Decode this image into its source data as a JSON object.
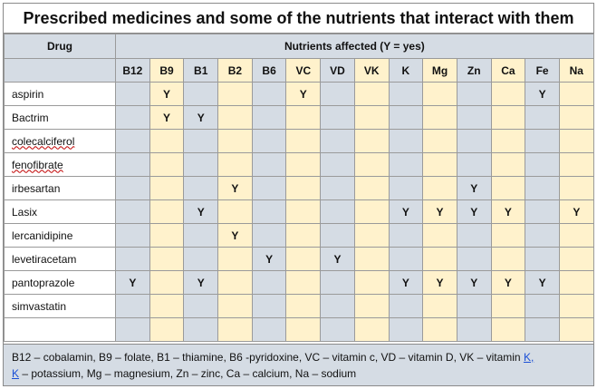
{
  "title": "Prescribed medicines and some of the nutrients that interact with them",
  "table": {
    "drug_header": "Drug",
    "nutrients_header": "Nutrients affected (Y = yes)",
    "nutrients": [
      "B12",
      "B9",
      "B1",
      "B2",
      "B6",
      "VC",
      "VD",
      "VK",
      "K",
      "Mg",
      "Zn",
      "Ca",
      "Fe",
      "Na"
    ],
    "rows": [
      {
        "drug": "aspirin",
        "cells": [
          "",
          "Y",
          "",
          "",
          "",
          "Y",
          "",
          "",
          "",
          "",
          "",
          "",
          "Y",
          ""
        ]
      },
      {
        "drug": "Bactrim",
        "cells": [
          "",
          "Y",
          "Y",
          "",
          "",
          "",
          "",
          "",
          "",
          "",
          "",
          "",
          "",
          ""
        ]
      },
      {
        "drug": "colecalciferol",
        "cells": [
          "",
          "",
          "",
          "",
          "",
          "",
          "",
          "",
          "",
          "",
          "",
          "",
          "",
          ""
        ]
      },
      {
        "drug": "fenofibrate",
        "cells": [
          "",
          "",
          "",
          "",
          "",
          "",
          "",
          "",
          "",
          "",
          "",
          "",
          "",
          ""
        ]
      },
      {
        "drug": "irbesartan",
        "cells": [
          "",
          "",
          "",
          "Y",
          "",
          "",
          "",
          "",
          "",
          "",
          "Y",
          "",
          "",
          ""
        ]
      },
      {
        "drug": "Lasix",
        "cells": [
          "",
          "",
          "Y",
          "",
          "",
          "",
          "",
          "",
          "Y",
          "Y",
          "Y",
          "Y",
          "",
          "Y"
        ]
      },
      {
        "drug": "lercanidipine",
        "cells": [
          "",
          "",
          "",
          "Y",
          "",
          "",
          "",
          "",
          "",
          "",
          "",
          "",
          "",
          ""
        ]
      },
      {
        "drug": "levetiracetam",
        "cells": [
          "",
          "",
          "",
          "",
          "Y",
          "",
          "Y",
          "",
          "",
          "",
          "",
          "",
          "",
          ""
        ]
      },
      {
        "drug": "pantoprazole",
        "cells": [
          "Y",
          "",
          "Y",
          "",
          "",
          "",
          "",
          "",
          "Y",
          "Y",
          "Y",
          "Y",
          "Y",
          ""
        ]
      },
      {
        "drug": "simvastatin",
        "cells": [
          "",
          "",
          "",
          "",
          "",
          "",
          "",
          "",
          "",
          "",
          "",
          "",
          "",
          ""
        ]
      },
      {
        "drug": "",
        "cells": [
          "",
          "",
          "",
          "",
          "",
          "",
          "",
          "",
          "",
          "",
          "",
          "",
          "",
          ""
        ]
      }
    ]
  },
  "legend": {
    "line1_text": "B12 – cobalamin, B9 – folate, B1 – thiamine, B6 -pyridoxine, VC – vitamin c, VD – vitamin D, VK – vitamin ",
    "line1_link": "K,",
    "line2_link": "K",
    "line2_text": " – potassium, Mg – magnesium, Zn – zinc, Ca – calcium, Na – sodium"
  },
  "colors": {
    "header_blue": "#d5dce4",
    "cell_blue": "#d5dce4",
    "cell_yellow": "#fff2cc",
    "grid": "#9a9a9a",
    "link": "#1a4fd6"
  }
}
